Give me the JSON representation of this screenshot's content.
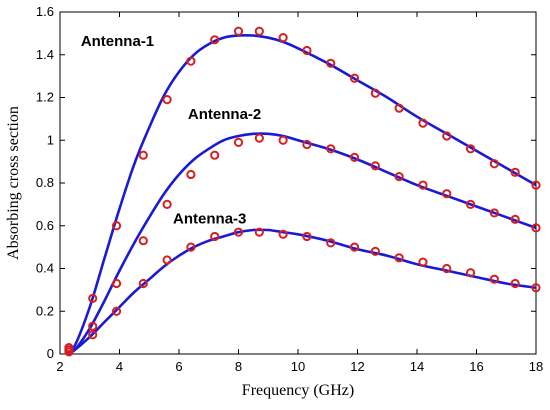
{
  "chart_data": {
    "type": "line",
    "title": "",
    "xlabel": "Frequency (GHz)",
    "ylabel": "Absorbing cross section",
    "xlim": [
      2,
      18
    ],
    "ylim": [
      0,
      1.6
    ],
    "xticks": [
      2,
      4,
      6,
      8,
      10,
      12,
      14,
      16,
      18
    ],
    "yticks": [
      0,
      0.2,
      0.4,
      0.6,
      0.8,
      1,
      1.2,
      1.4,
      1.6
    ],
    "ytick_labels": [
      "0",
      "0.2",
      "0.4",
      "0.6",
      "0.8",
      "1",
      "1.2",
      "1.4",
      "1.6"
    ],
    "grid": false,
    "legend": "none",
    "line_color": "#1a1ad6",
    "marker_color": "#d62020",
    "series": [
      {
        "name": "Antenna-1",
        "line": {
          "x": [
            2.2,
            2.5,
            3,
            3.5,
            4,
            4.5,
            5,
            5.5,
            6,
            6.5,
            7,
            7.5,
            8,
            8.5,
            9,
            9.5,
            10,
            11,
            12,
            13,
            14,
            15,
            16,
            17,
            18
          ],
          "y": [
            0.0,
            0.04,
            0.22,
            0.45,
            0.68,
            0.89,
            1.06,
            1.21,
            1.32,
            1.4,
            1.45,
            1.48,
            1.49,
            1.49,
            1.48,
            1.46,
            1.43,
            1.36,
            1.28,
            1.2,
            1.11,
            1.03,
            0.95,
            0.87,
            0.79
          ]
        },
        "markers": {
          "x": [
            2.3,
            3.1,
            3.9,
            4.8,
            5.6,
            6.4,
            7.2,
            8.0,
            8.7,
            9.5,
            10.3,
            11.1,
            11.9,
            12.6,
            13.4,
            14.2,
            15.0,
            15.8,
            16.6,
            17.3,
            18.0
          ],
          "y": [
            0.03,
            0.26,
            0.6,
            0.93,
            1.19,
            1.37,
            1.47,
            1.51,
            1.51,
            1.48,
            1.42,
            1.36,
            1.29,
            1.22,
            1.15,
            1.08,
            1.02,
            0.96,
            0.89,
            0.85,
            0.79
          ]
        }
      },
      {
        "name": "Antenna-2",
        "line": {
          "x": [
            2.2,
            2.5,
            3,
            3.5,
            4,
            4.5,
            5,
            5.5,
            6,
            6.5,
            7,
            7.5,
            8,
            8.5,
            9,
            9.5,
            10,
            11,
            12,
            13,
            14,
            15,
            16,
            17,
            18
          ],
          "y": [
            0.0,
            0.02,
            0.12,
            0.25,
            0.39,
            0.52,
            0.64,
            0.75,
            0.84,
            0.91,
            0.96,
            1.0,
            1.02,
            1.03,
            1.03,
            1.02,
            1.0,
            0.96,
            0.91,
            0.85,
            0.79,
            0.74,
            0.69,
            0.64,
            0.59
          ]
        },
        "markers": {
          "x": [
            2.3,
            3.1,
            3.9,
            4.8,
            5.6,
            6.4,
            7.2,
            8.0,
            8.7,
            9.5,
            10.3,
            11.1,
            11.9,
            12.6,
            13.4,
            14.2,
            15.0,
            15.8,
            16.6,
            17.3,
            18.0
          ],
          "y": [
            0.02,
            0.13,
            0.33,
            0.53,
            0.7,
            0.84,
            0.93,
            0.99,
            1.01,
            1.0,
            0.98,
            0.96,
            0.92,
            0.88,
            0.83,
            0.79,
            0.75,
            0.7,
            0.66,
            0.63,
            0.59
          ]
        }
      },
      {
        "name": "Antenna-3",
        "line": {
          "x": [
            2.2,
            2.5,
            3,
            3.5,
            4,
            4.5,
            5,
            5.5,
            6,
            6.5,
            7,
            7.5,
            8,
            8.5,
            9,
            9.5,
            10,
            11,
            12,
            13,
            14,
            15,
            16,
            17,
            18
          ],
          "y": [
            0.0,
            0.02,
            0.08,
            0.15,
            0.22,
            0.29,
            0.35,
            0.41,
            0.46,
            0.5,
            0.53,
            0.55,
            0.57,
            0.58,
            0.58,
            0.57,
            0.56,
            0.53,
            0.49,
            0.46,
            0.42,
            0.39,
            0.36,
            0.33,
            0.31
          ]
        },
        "markers": {
          "x": [
            2.3,
            3.1,
            3.9,
            4.8,
            5.6,
            6.4,
            7.2,
            8.0,
            8.7,
            9.5,
            10.3,
            11.1,
            11.9,
            12.6,
            13.4,
            14.2,
            15.0,
            15.8,
            16.6,
            17.3,
            18.0
          ],
          "y": [
            0.01,
            0.09,
            0.2,
            0.33,
            0.44,
            0.5,
            0.55,
            0.57,
            0.57,
            0.56,
            0.55,
            0.52,
            0.5,
            0.48,
            0.45,
            0.43,
            0.4,
            0.38,
            0.35,
            0.33,
            0.31
          ]
        }
      }
    ]
  }
}
